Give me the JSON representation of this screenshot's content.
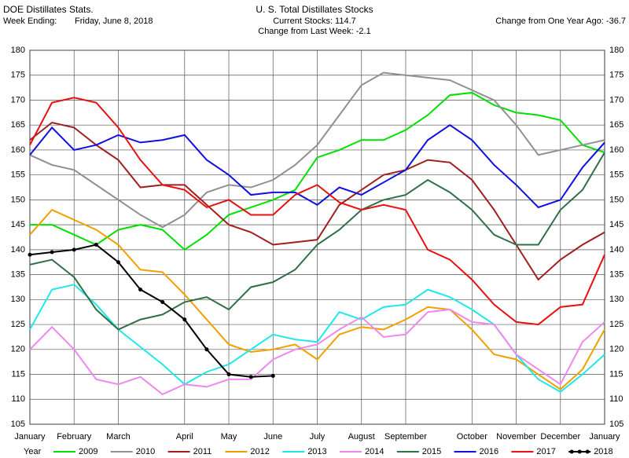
{
  "header": {
    "left_title": "DOE Distillates Stats.",
    "week_label": "Week Ending:",
    "week_date": "Friday, June 8, 2018",
    "center_subtitle_1": "Current Stocks: 114.7",
    "center_subtitle_2": "Change from Last Week:  -2.1",
    "right_note": "Change from One Year Ago: -36.7"
  },
  "chart_data": {
    "type": "line",
    "title": "U. S. Total Distillates Stocks",
    "legend_title": "Year",
    "categories": [
      "January",
      null,
      "February",
      null,
      "March",
      null,
      null,
      "April",
      null,
      "May",
      null,
      "June",
      null,
      "July",
      null,
      "August",
      null,
      "September",
      null,
      null,
      "October",
      null,
      "November",
      null,
      "December",
      null,
      "January"
    ],
    "ylim": [
      105,
      180
    ],
    "yticks": [
      105,
      110,
      115,
      120,
      125,
      130,
      135,
      140,
      145,
      150,
      155,
      160,
      165,
      170,
      175,
      180
    ],
    "grid": true,
    "legend": "bottom",
    "series": [
      {
        "name": "2009",
        "color": "#00e000",
        "values": [
          145,
          145,
          143,
          141,
          144,
          145,
          144,
          140,
          143,
          147,
          148.5,
          150,
          152,
          158.5,
          160,
          162,
          162,
          164,
          167,
          171,
          171.5,
          169,
          167.5,
          167,
          166,
          161,
          159.5
        ]
      },
      {
        "name": "2010",
        "color": "#909090",
        "values": [
          159,
          157,
          156,
          153,
          150,
          147,
          144.5,
          147,
          151.5,
          153,
          152.5,
          154,
          157,
          161,
          167,
          173,
          175.5,
          175,
          174.5,
          174,
          172,
          170,
          165,
          159,
          160,
          161,
          162
        ]
      },
      {
        "name": "2011",
        "color": "#a02020",
        "values": [
          162,
          165.5,
          164.5,
          161,
          158,
          152.5,
          153,
          153,
          149,
          145,
          143.5,
          141,
          141.5,
          142,
          149,
          152,
          155,
          156,
          158,
          157.5,
          154,
          148,
          141,
          134,
          138,
          141,
          143.5
        ]
      },
      {
        "name": "2012",
        "color": "#f0a000",
        "values": [
          143,
          148,
          146,
          144,
          141,
          136,
          135.5,
          131,
          126,
          121,
          119.5,
          120,
          121,
          118,
          123,
          124.5,
          124,
          126,
          128.5,
          128,
          124,
          119,
          118,
          115,
          112,
          116,
          124
        ]
      },
      {
        "name": "2013",
        "color": "#20e8e8",
        "values": [
          124,
          132,
          133,
          129,
          124,
          120.5,
          117,
          113,
          115.5,
          117,
          120,
          123,
          122,
          121.5,
          127.5,
          126,
          128.5,
          129,
          132,
          130.5,
          128,
          125,
          119,
          114,
          111.5,
          115,
          119
        ]
      },
      {
        "name": "2014",
        "color": "#ee88ee",
        "values": [
          120,
          124.5,
          120,
          114,
          113,
          114.5,
          111,
          113,
          112.5,
          114,
          114,
          118,
          120,
          121,
          124,
          126.5,
          122.5,
          123,
          127.5,
          128,
          125.5,
          125,
          119,
          116,
          113,
          121.5,
          125.5
        ]
      },
      {
        "name": "2015",
        "color": "#2e7048",
        "values": [
          137,
          138,
          134.5,
          128,
          124,
          126,
          127,
          129.5,
          130.5,
          128,
          132.5,
          133.5,
          136,
          141,
          144,
          148,
          150,
          151,
          154,
          151.5,
          148,
          143,
          141,
          141,
          148,
          152,
          159.5
        ]
      },
      {
        "name": "2016",
        "color": "#1010e0",
        "values": [
          159,
          164.5,
          160,
          161,
          163,
          161.5,
          162,
          163,
          158,
          155,
          151,
          151.5,
          151.5,
          149,
          152.5,
          151,
          153.5,
          156,
          162,
          165,
          162,
          157,
          153,
          148.5,
          150,
          156.5,
          161.5
        ]
      },
      {
        "name": "2017",
        "color": "#e81010",
        "values": [
          161,
          169.5,
          170.5,
          169.5,
          164.5,
          158,
          153,
          152,
          148.5,
          150,
          147,
          147,
          151,
          153,
          149.5,
          148,
          149,
          148,
          140,
          138,
          134,
          129,
          125.5,
          125,
          128.5,
          129,
          139
        ]
      },
      {
        "name": "2018",
        "color": "#000000",
        "marker": true,
        "values": [
          139,
          139.5,
          140,
          141,
          137.5,
          132,
          129.5,
          126,
          120,
          115,
          114.5,
          114.7,
          null,
          null,
          null,
          null,
          null,
          null,
          null,
          null,
          null,
          null,
          null,
          null,
          null,
          null,
          null
        ]
      }
    ]
  }
}
